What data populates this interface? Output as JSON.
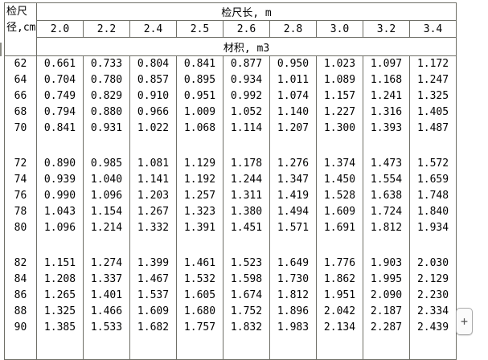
{
  "header": {
    "corner_line1": "检尺",
    "corner_line2": "径,cm",
    "length_label": "检尺长, m",
    "volume_label": "材积, m3",
    "columns": [
      "2.0",
      "2.2",
      "2.4",
      "2.5",
      "2.6",
      "2.8",
      "3.0",
      "3.2",
      "3.4"
    ]
  },
  "plus_button_label": "+",
  "colors": {
    "border": "#6f6f67",
    "text": "#000000",
    "background": "#ffffff",
    "button_border": "#a9a9a9",
    "button_bg": "#fbfbfb"
  },
  "chart_data": {
    "type": "table",
    "title": "检尺长, m / 材积, m3",
    "row_header": "检尺径,cm",
    "columns": [
      "2.0",
      "2.2",
      "2.4",
      "2.5",
      "2.6",
      "2.8",
      "3.0",
      "3.2",
      "3.4"
    ],
    "groups": [
      {
        "rows": [
          {
            "diameter": "62",
            "values": [
              "0.661",
              "0.733",
              "0.804",
              "0.841",
              "0.877",
              "0.950",
              "1.023",
              "1.097",
              "1.172"
            ]
          },
          {
            "diameter": "64",
            "values": [
              "0.704",
              "0.780",
              "0.857",
              "0.895",
              "0.934",
              "1.011",
              "1.089",
              "1.168",
              "1.247"
            ]
          },
          {
            "diameter": "66",
            "values": [
              "0.749",
              "0.829",
              "0.910",
              "0.951",
              "0.992",
              "1.074",
              "1.157",
              "1.241",
              "1.325"
            ]
          },
          {
            "diameter": "68",
            "values": [
              "0.794",
              "0.880",
              "0.966",
              "1.009",
              "1.052",
              "1.140",
              "1.227",
              "1.316",
              "1.405"
            ]
          },
          {
            "diameter": "70",
            "values": [
              "0.841",
              "0.931",
              "1.022",
              "1.068",
              "1.114",
              "1.207",
              "1.300",
              "1.393",
              "1.487"
            ]
          }
        ]
      },
      {
        "rows": [
          {
            "diameter": "72",
            "values": [
              "0.890",
              "0.985",
              "1.081",
              "1.129",
              "1.178",
              "1.276",
              "1.374",
              "1.473",
              "1.572"
            ]
          },
          {
            "diameter": "74",
            "values": [
              "0.939",
              "1.040",
              "1.141",
              "1.192",
              "1.244",
              "1.347",
              "1.450",
              "1.554",
              "1.659"
            ]
          },
          {
            "diameter": "76",
            "values": [
              "0.990",
              "1.096",
              "1.203",
              "1.257",
              "1.311",
              "1.419",
              "1.528",
              "1.638",
              "1.748"
            ]
          },
          {
            "diameter": "78",
            "values": [
              "1.043",
              "1.154",
              "1.267",
              "1.323",
              "1.380",
              "1.494",
              "1.609",
              "1.724",
              "1.840"
            ]
          },
          {
            "diameter": "80",
            "values": [
              "1.096",
              "1.214",
              "1.332",
              "1.391",
              "1.451",
              "1.571",
              "1.691",
              "1.812",
              "1.934"
            ]
          }
        ]
      },
      {
        "rows": [
          {
            "diameter": "82",
            "values": [
              "1.151",
              "1.274",
              "1.399",
              "1.461",
              "1.523",
              "1.649",
              "1.776",
              "1.903",
              "2.030"
            ]
          },
          {
            "diameter": "84",
            "values": [
              "1.208",
              "1.337",
              "1.467",
              "1.532",
              "1.598",
              "1.730",
              "1.862",
              "1.995",
              "2.129"
            ]
          },
          {
            "diameter": "86",
            "values": [
              "1.265",
              "1.401",
              "1.537",
              "1.605",
              "1.674",
              "1.812",
              "1.951",
              "2.090",
              "2.230"
            ]
          },
          {
            "diameter": "88",
            "values": [
              "1.325",
              "1.466",
              "1.609",
              "1.680",
              "1.752",
              "1.896",
              "2.042",
              "2.187",
              "2.334"
            ]
          },
          {
            "diameter": "90",
            "values": [
              "1.385",
              "1.533",
              "1.682",
              "1.757",
              "1.832",
              "1.983",
              "2.134",
              "2.287",
              "2.439"
            ]
          }
        ]
      }
    ]
  }
}
